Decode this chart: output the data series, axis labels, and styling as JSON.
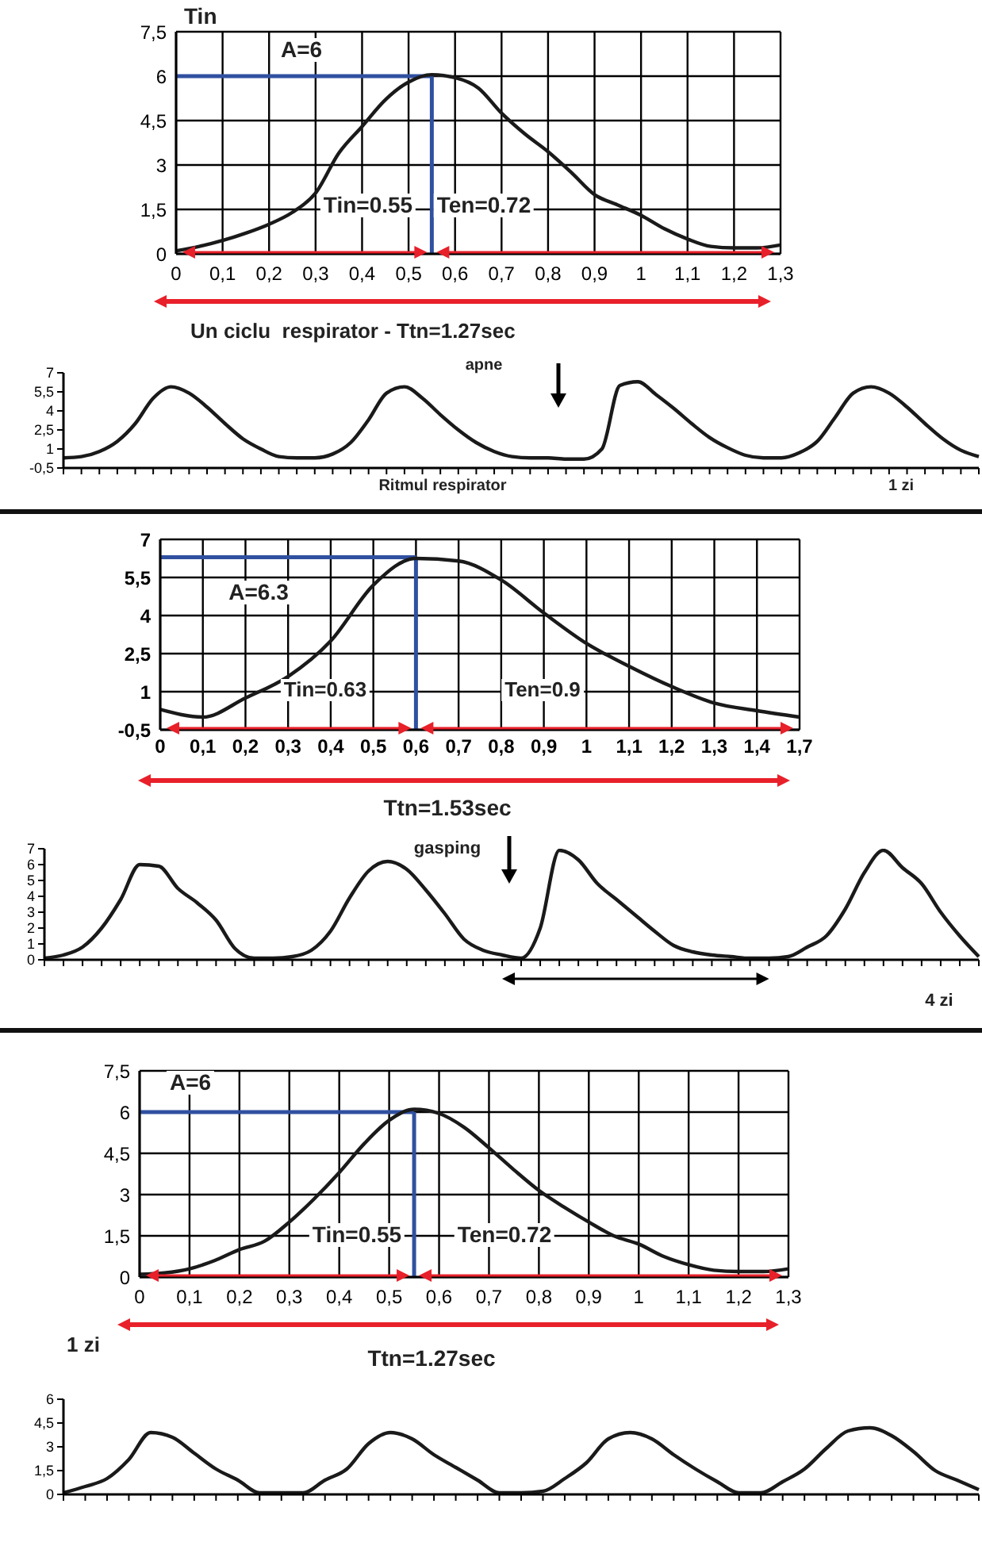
{
  "chart_data": [
    {
      "type": "line",
      "ylabel": "Tin",
      "annotations": [
        "A=6",
        "Tin=0.55",
        "Ten=0.72",
        "Un ciclu  respirator - Ttn=1.27sec"
      ],
      "x": [
        0,
        0.05,
        0.1,
        0.15,
        0.2,
        0.25,
        0.3,
        0.35,
        0.4,
        0.45,
        0.5,
        0.55,
        0.6,
        0.65,
        0.7,
        0.75,
        0.8,
        0.85,
        0.9,
        0.95,
        1,
        1.05,
        1.1,
        1.15,
        1.2,
        1.25,
        1.3
      ],
      "values": [
        0.1,
        0.25,
        0.45,
        0.7,
        1.0,
        1.4,
        2.05,
        3.4,
        4.3,
        5.2,
        5.8,
        6.05,
        5.95,
        5.6,
        4.75,
        4.05,
        3.45,
        2.75,
        2.0,
        1.65,
        1.3,
        0.85,
        0.5,
        0.25,
        0.2,
        0.2,
        0.3
      ],
      "color": "#1a1a1a",
      "marker": "none",
      "grid": true,
      "xlim": [
        0,
        1.3
      ],
      "xticks": [
        {
          "value": 0,
          "label": "0"
        },
        {
          "value": 0.1,
          "label": "0,1"
        },
        {
          "value": 0.2,
          "label": "0,2"
        },
        {
          "value": 0.3,
          "label": "0,3"
        },
        {
          "value": 0.4,
          "label": "0,4"
        },
        {
          "value": 0.5,
          "label": "0,5"
        },
        {
          "value": 0.6,
          "label": "0,6"
        },
        {
          "value": 0.7,
          "label": "0,7"
        },
        {
          "value": 0.8,
          "label": "0,8"
        },
        {
          "value": 0.9,
          "label": "0,9"
        },
        {
          "value": 1,
          "label": "1"
        },
        {
          "value": 1.1,
          "label": "1,1"
        },
        {
          "value": 1.2,
          "label": "1,2"
        },
        {
          "value": 1.3,
          "label": "1,3"
        }
      ],
      "ylim": [
        0,
        7.5
      ],
      "yticks": [
        {
          "value": 0,
          "label": "0"
        },
        {
          "value": 1.5,
          "label": "1,5"
        },
        {
          "value": 3,
          "label": "3"
        },
        {
          "value": 4.5,
          "label": "4,5"
        },
        {
          "value": 6,
          "label": "6"
        },
        {
          "value": 7.5,
          "label": "7,5"
        }
      ],
      "ref_lines": [
        {
          "axis": "y",
          "value": 6,
          "color": "#3050a0"
        },
        {
          "axis": "x",
          "value": 0.55,
          "color": "#3050a0"
        }
      ]
    },
    {
      "type": "line",
      "xlabel": "Ritmul respirator",
      "annotations": [
        "apne",
        "1 zi"
      ],
      "categories": [
        null,
        null,
        null,
        null,
        null,
        null,
        null,
        null,
        null,
        null,
        null,
        null,
        null,
        null,
        null,
        null,
        null,
        null,
        null,
        null,
        null,
        null,
        null,
        null,
        null,
        null,
        null,
        null,
        null,
        null,
        null,
        null,
        null,
        null,
        null,
        null,
        null,
        null,
        null,
        null,
        null,
        null,
        null,
        null,
        null,
        null,
        null,
        null,
        null,
        null,
        null,
        null
      ],
      "values": [
        0.3,
        0.4,
        0.8,
        1.6,
        3.0,
        5.0,
        5.9,
        5.4,
        4.3,
        3.0,
        1.8,
        1.0,
        0.4,
        0.3,
        0.3,
        0.6,
        1.5,
        3.3,
        5.4,
        5.9,
        5.0,
        3.7,
        2.5,
        1.5,
        0.8,
        0.4,
        0.3,
        0.3,
        0.2,
        0.2,
        1.0,
        6.0,
        6.3,
        5.3,
        4.2,
        3.0,
        1.9,
        1.1,
        0.5,
        0.3,
        0.3,
        0.7,
        1.6,
        3.5,
        5.4,
        5.9,
        5.4,
        4.3,
        3.0,
        1.8,
        0.9,
        0.4
      ],
      "color": "#1a1a1a",
      "marker": "none",
      "tick_labels": "y",
      "ylim": [
        -0.5,
        7
      ],
      "yticks": [
        {
          "value": -0.5,
          "label": "-0,5"
        },
        1,
        {
          "value": 2.5,
          "label": "2,5"
        },
        4,
        {
          "value": 5.5,
          "label": "5,5"
        },
        7
      ]
    },
    {
      "type": "line",
      "annotations": [
        "A=6.3",
        "Tin=0.63",
        "Ten=0.9",
        "Ttn=1.53sec"
      ],
      "categories": [
        "0",
        "0,1",
        "0,2",
        "0,3",
        "0,4",
        "0,5",
        "0,6",
        "0,7",
        "0,8",
        "0,9",
        "1",
        "1,1",
        "1,2",
        "1,3",
        "1,4",
        "1,7"
      ],
      "values": [
        0.3,
        0.0,
        0.75,
        1.6,
        3.0,
        5.2,
        6.25,
        6.15,
        5.4,
        4.1,
        2.9,
        2.0,
        1.2,
        0.55,
        0.25,
        0.0
      ],
      "color": "#1a1a1a",
      "marker": "none",
      "grid": true,
      "ylim": [
        -0.5,
        7
      ],
      "yticks": [
        {
          "value": -0.5,
          "label": "-0,5"
        },
        1,
        {
          "value": 2.5,
          "label": "2,5"
        },
        4,
        {
          "value": 5.5,
          "label": "5,5"
        },
        7
      ],
      "ref_lines": [
        {
          "axis": "y",
          "value": 6.3,
          "color": "#3050a0"
        },
        {
          "axis": "x",
          "value": "0,6",
          "color": "#3050a0"
        }
      ]
    },
    {
      "type": "line",
      "annotations": [
        "gasping",
        "4 zi"
      ],
      "categories": [
        null,
        null,
        null,
        null,
        null,
        null,
        null,
        null,
        null,
        null,
        null,
        null,
        null,
        null,
        null,
        null,
        null,
        null,
        null,
        null,
        null,
        null,
        null,
        null,
        null,
        null,
        null,
        null,
        null,
        null,
        null,
        null,
        null,
        null,
        null,
        null,
        null,
        null,
        null,
        null,
        null,
        null,
        null,
        null,
        null,
        null,
        null,
        null,
        null,
        null
      ],
      "values": [
        0.1,
        0.3,
        0.8,
        2.0,
        3.8,
        6.0,
        5.9,
        4.5,
        3.6,
        2.5,
        0.7,
        0.1,
        0.1,
        0.2,
        0.6,
        1.8,
        3.9,
        5.6,
        6.2,
        5.7,
        4.4,
        2.9,
        1.3,
        0.6,
        0.3,
        0.1,
        2.0,
        6.9,
        6.3,
        4.8,
        3.8,
        2.8,
        1.8,
        0.9,
        0.5,
        0.3,
        0.2,
        0.1,
        0.1,
        0.2,
        0.8,
        1.5,
        3.2,
        5.5,
        6.9,
        5.8,
        4.8,
        3.0,
        1.5,
        0.2
      ],
      "color": "#1a1a1a",
      "marker": "none",
      "tick_labels": "y",
      "ylim": [
        0,
        7
      ],
      "yticks": [
        0,
        1,
        2,
        3,
        4,
        5,
        6,
        7
      ]
    },
    {
      "type": "line",
      "annotations": [
        "A=6",
        "Tin=0.55",
        "Ten=0.72",
        "1 zi",
        "Ttn=1.27sec"
      ],
      "x": [
        0,
        0.05,
        0.1,
        0.15,
        0.2,
        0.25,
        0.3,
        0.35,
        0.4,
        0.45,
        0.5,
        0.55,
        0.6,
        0.65,
        0.7,
        0.75,
        0.8,
        0.85,
        0.9,
        0.95,
        1,
        1.05,
        1.1,
        1.15,
        1.2,
        1.25,
        1.3
      ],
      "values": [
        0.1,
        0.15,
        0.3,
        0.6,
        1.0,
        1.3,
        2.0,
        2.85,
        3.8,
        4.85,
        5.7,
        6.1,
        5.95,
        5.45,
        4.7,
        3.9,
        3.15,
        2.55,
        2.0,
        1.5,
        1.2,
        0.75,
        0.45,
        0.25,
        0.2,
        0.2,
        0.3
      ],
      "color": "#1a1a1a",
      "marker": "none",
      "grid": true,
      "xlim": [
        0,
        1.3
      ],
      "xticks": [
        0,
        {
          "value": 0.1,
          "label": "0,1"
        },
        {
          "value": 0.2,
          "label": "0,2"
        },
        {
          "value": 0.3,
          "label": "0,3"
        },
        {
          "value": 0.4,
          "label": "0,4"
        },
        {
          "value": 0.5,
          "label": "0,5"
        },
        {
          "value": 0.6,
          "label": "0,6"
        },
        {
          "value": 0.7,
          "label": "0,7"
        },
        {
          "value": 0.8,
          "label": "0,8"
        },
        {
          "value": 0.9,
          "label": "0,9"
        },
        1,
        {
          "value": 1.1,
          "label": "1,1"
        },
        {
          "value": 1.2,
          "label": "1,2"
        },
        {
          "value": 1.3,
          "label": "1,3"
        }
      ],
      "ylim": [
        0,
        7.5
      ],
      "yticks": [
        0,
        {
          "value": 1.5,
          "label": "1,5"
        },
        3,
        {
          "value": 4.5,
          "label": "4,5"
        },
        6,
        {
          "value": 7.5,
          "label": "7,5"
        }
      ],
      "ref_lines": [
        {
          "axis": "y",
          "value": 6,
          "color": "#3050a0"
        },
        {
          "axis": "x",
          "value": 0.55,
          "color": "#3050a0"
        }
      ]
    },
    {
      "type": "line",
      "categories": [
        null,
        null,
        null,
        null,
        null,
        null,
        null,
        null,
        null,
        null,
        null,
        null,
        null,
        null,
        null,
        null,
        null,
        null,
        null,
        null,
        null,
        null,
        null,
        null,
        null,
        null,
        null,
        null,
        null,
        null,
        null,
        null,
        null,
        null,
        null,
        null,
        null,
        null,
        null,
        null,
        null,
        null,
        null
      ],
      "values": [
        0.1,
        0.5,
        1.0,
        2.2,
        3.9,
        3.6,
        2.6,
        1.6,
        0.9,
        0.1,
        0.1,
        0.1,
        0.9,
        1.6,
        3.2,
        3.9,
        3.5,
        2.5,
        1.7,
        0.9,
        0.1,
        0.1,
        0.2,
        1.0,
        2.0,
        3.5,
        3.9,
        3.5,
        2.5,
        1.6,
        0.8,
        0.1,
        0.1,
        0.8,
        1.6,
        2.9,
        4.0,
        4.2,
        3.7,
        2.7,
        1.5,
        0.9,
        0.3
      ],
      "color": "#1a1a1a",
      "marker": "none",
      "tick_labels": "y",
      "ylim": [
        0,
        6
      ],
      "yticks": [
        0,
        {
          "value": 1.5,
          "label": "1,5"
        },
        3,
        {
          "value": 4.5,
          "label": "4,5"
        },
        6
      ]
    }
  ]
}
